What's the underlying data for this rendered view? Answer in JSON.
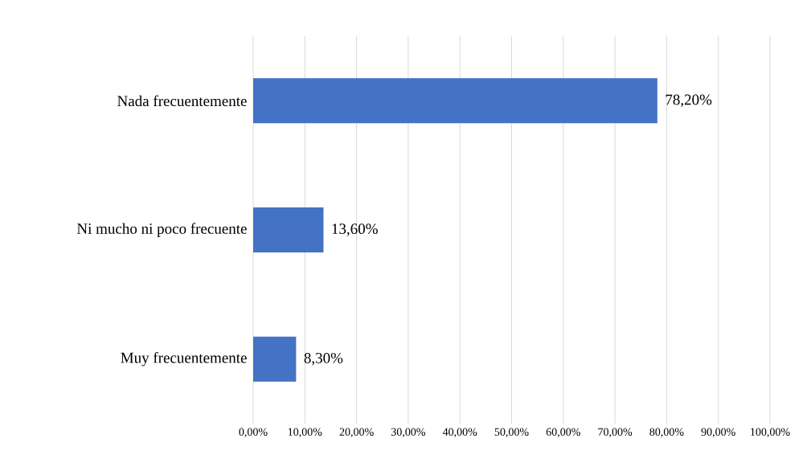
{
  "chart_data": {
    "type": "bar",
    "orientation": "horizontal",
    "categories": [
      "Nada frecuentemente",
      "Ni mucho ni poco frecuente",
      "Muy frecuentemente"
    ],
    "values": [
      78.2,
      13.6,
      8.3
    ],
    "value_labels": [
      "78,20%",
      "13,60%",
      "8,30%"
    ],
    "color": "#4472c4",
    "xlim": [
      0,
      100
    ],
    "xticks": [
      {
        "value": 0,
        "label": "0,00%"
      },
      {
        "value": 10,
        "label": "10,00%"
      },
      {
        "value": 20,
        "label": "20,00%"
      },
      {
        "value": 30,
        "label": "30,00%"
      },
      {
        "value": 40,
        "label": "40,00%"
      },
      {
        "value": 50,
        "label": "50,00%"
      },
      {
        "value": 60,
        "label": "60,00%"
      },
      {
        "value": 70,
        "label": "70,00%"
      },
      {
        "value": 80,
        "label": "80,00%"
      },
      {
        "value": 90,
        "label": "90,00%"
      },
      {
        "value": 100,
        "label": "100,00%"
      }
    ],
    "grid": "x"
  }
}
